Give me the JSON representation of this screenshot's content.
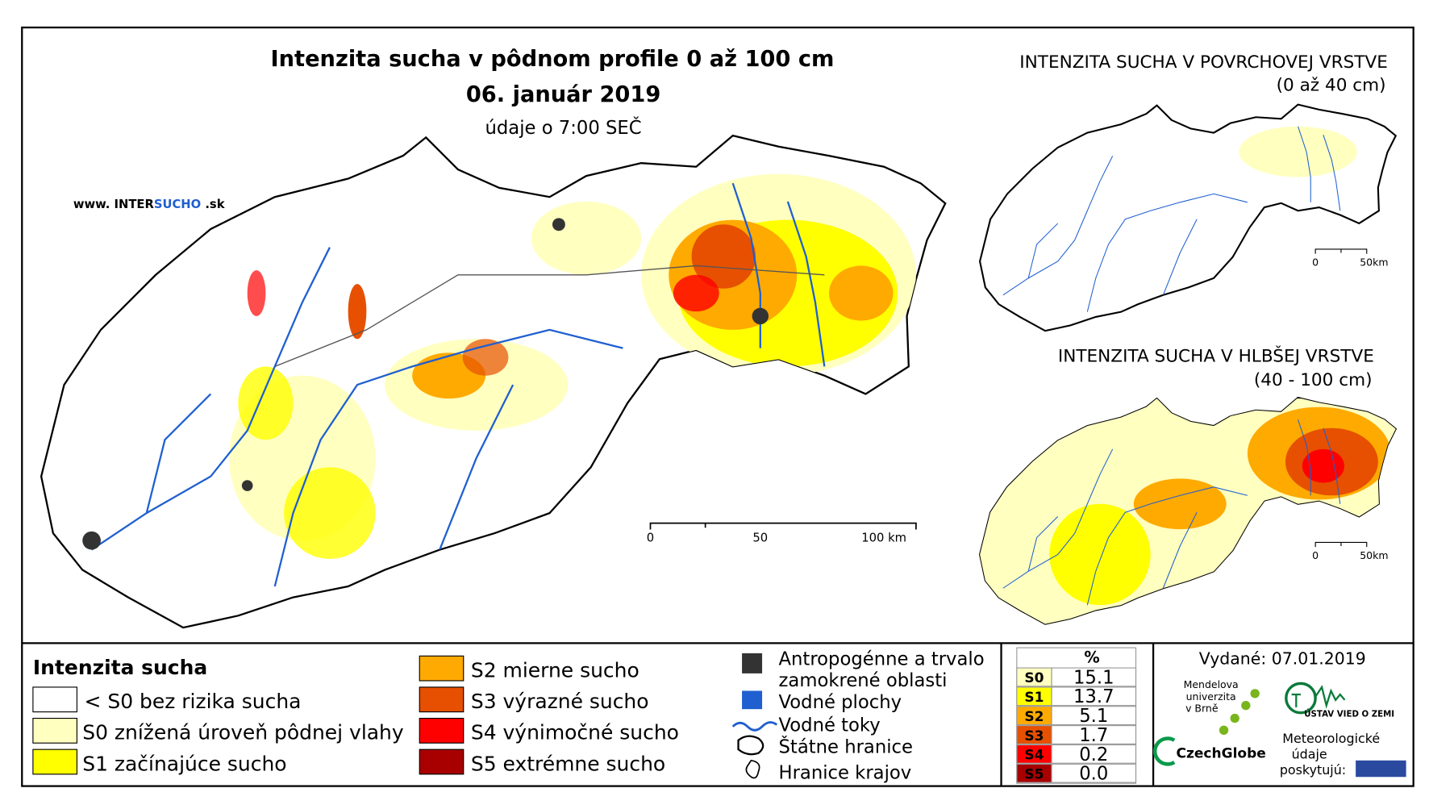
{
  "header": {
    "title": "Intenzita sucha v pôdnom profile 0 až 100 cm",
    "date": "06. január 2019",
    "note": "údaje o 7:00 SEČ",
    "website": [
      "www. INTER",
      "SUCHO",
      " .sk"
    ]
  },
  "main_map": {
    "scale": [
      "0",
      "50",
      "100 km"
    ]
  },
  "insets": [
    {
      "title": [
        "INTENZITA SUCHA V POVRCHOVEJ VRSTVE",
        "(0 až 40 cm)"
      ],
      "scale": [
        "0",
        "50km"
      ]
    },
    {
      "title": [
        "INTENZITA SUCHA V HLBŠEJ VRSTVE",
        "(40 - 100 cm)"
      ],
      "scale": [
        "0",
        "50km"
      ]
    }
  ],
  "legend": {
    "title": "Intenzita sucha",
    "classes": [
      {
        "label": "< S0 bez rizika sucha",
        "color": "#ffffff"
      },
      {
        "label": "S0 znížená úroveň pôdnej vlahy",
        "color": "#ffffc0"
      },
      {
        "label": "S1 začínajúce sucho",
        "color": "#ffff00"
      },
      {
        "label": "S2 mierne sucho",
        "color": "#ffaa00"
      },
      {
        "label": "S3 výrazné sucho",
        "color": "#e65000"
      },
      {
        "label": "S4 výnimočné sucho",
        "color": "#ff0000"
      },
      {
        "label": "S5 extrémne sucho",
        "color": "#a80000"
      }
    ],
    "layers": [
      [
        "Antropogénne a trvalo",
        "zamokrené oblasti"
      ],
      [
        "Vodné plochy"
      ],
      [
        "Vodné toky"
      ],
      [
        "Štátne hranice"
      ],
      [
        "Hranice krajov"
      ]
    ]
  },
  "stats": {
    "header": "%",
    "rows": [
      [
        "S0",
        "15.1"
      ],
      [
        "S1",
        "13.7"
      ],
      [
        "S2",
        "5.1"
      ],
      [
        "S3",
        "1.7"
      ],
      [
        "S4",
        "0.2"
      ],
      [
        "S5",
        "0.0"
      ]
    ]
  },
  "footer": {
    "issued": "Vydané: 07.01.2019",
    "mendel": [
      "Mendelova",
      "univerzita",
      "v Brně"
    ],
    "czechglobe": "CzechGlobe",
    "ustav": "ÚSTAV VIED O ZEMI",
    "meteo": [
      "Meteorologické",
      "údaje",
      "poskytujú:"
    ]
  }
}
